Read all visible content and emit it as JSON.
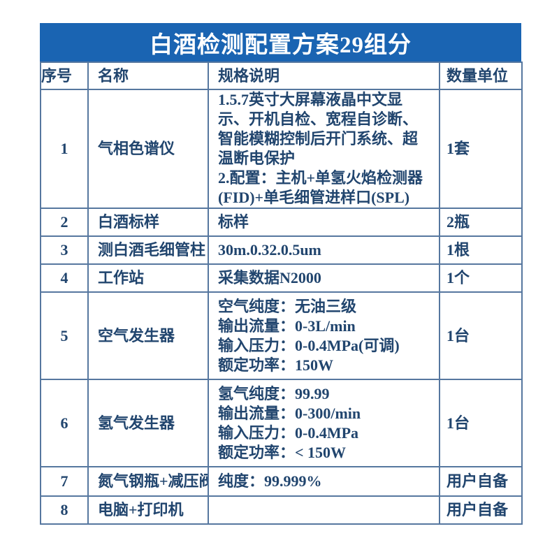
{
  "title": "白酒检测配置方案29组分",
  "table": {
    "headers": [
      "序号",
      "名称",
      "规格说明",
      "数量单位"
    ],
    "rows": [
      {
        "no": "1",
        "name": "气相色谱仪",
        "spec": "1.5.7英寸大屏幕液晶中文显示、开机自检、宽程自诊断、智能模糊控制后开门系统、超温断电保护\n2.配置：主机+单氢火焰检测器(FID)+单毛细管进样口(SPL)",
        "qty": "1套"
      },
      {
        "no": "2",
        "name": "白酒标样",
        "spec": "标样",
        "qty": "2瓶"
      },
      {
        "no": "3",
        "name": "测白酒毛细管柱",
        "spec": "30m.0.32.0.5um",
        "qty": "1根"
      },
      {
        "no": "4",
        "name": "工作站",
        "spec": "采集数据N2000",
        "qty": "1个"
      },
      {
        "no": "5",
        "name": "空气发生器",
        "spec": "空气纯度：无油三级\n输出流量：0-3L/min\n输入压力：0-0.4MPa(可调)\n额定功率：150W",
        "qty": "1台"
      },
      {
        "no": "6",
        "name": "氢气发生器",
        "spec": "氢气纯度：99.99\n输出流量：0-300/min\n输入压力：0-0.4MPa\n额定功率：< 150W",
        "qty": "1台"
      },
      {
        "no": "7",
        "name": "氮气钢瓶+减压阀",
        "spec": "纯度：99.999%",
        "qty": "用户自备"
      },
      {
        "no": "8",
        "name": "电脑+打印机",
        "spec": "",
        "qty": "用户自备"
      }
    ]
  },
  "colors": {
    "banner_bg": "#1a64b2",
    "title_text": "#ffffff",
    "border": "#56779f",
    "cell_text": "#21456e",
    "page_bg": "#ffffff"
  }
}
